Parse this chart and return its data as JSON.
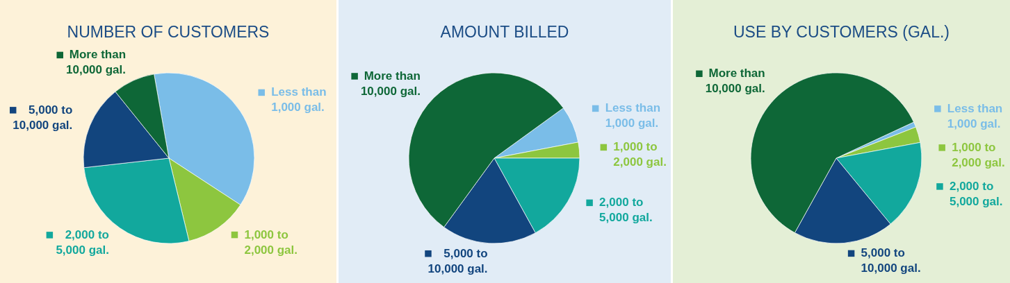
{
  "chart_data": [
    {
      "type": "pie",
      "legend": "right",
      "title": "NUMBER OF CUSTOMERS",
      "categories": [
        "Less than 1,000 gal.",
        "1,000 to 2,000 gal.",
        "2,000 to 5,000 gal.",
        "5,000 to 10,000 gal.",
        "More than 10,000 gal."
      ],
      "values": [
        37,
        12,
        27,
        16,
        8
      ],
      "colors": [
        "#7abde8",
        "#8dc63f",
        "#12a89d",
        "#12457e",
        "#0e6737"
      ]
    },
    {
      "type": "pie",
      "legend": "right",
      "title": "AMOUNT BILLED",
      "categories": [
        "Less than 1,000 gal.",
        "1,000 to 2,000 gal.",
        "2,000 to 5,000 gal.",
        "5,000 to 10,000 gal.",
        "More than 10,000 gal."
      ],
      "values": [
        7,
        3,
        17,
        18,
        55
      ],
      "colors": [
        "#7abde8",
        "#8dc63f",
        "#12a89d",
        "#12457e",
        "#0e6737"
      ]
    },
    {
      "type": "pie",
      "legend": "right",
      "title": "USE BY CUSTOMERS (GAL.)",
      "categories": [
        "Less than 1,000 gal.",
        "1,000 to 2,000 gal.",
        "2,000 to 5,000 gal.",
        "5,000 to 10,000 gal.",
        "More than 10,000 gal."
      ],
      "values": [
        1,
        3,
        17,
        19,
        60
      ],
      "colors": [
        "#7abde8",
        "#8dc63f",
        "#12a89d",
        "#12457e",
        "#0e6737"
      ]
    }
  ]
}
